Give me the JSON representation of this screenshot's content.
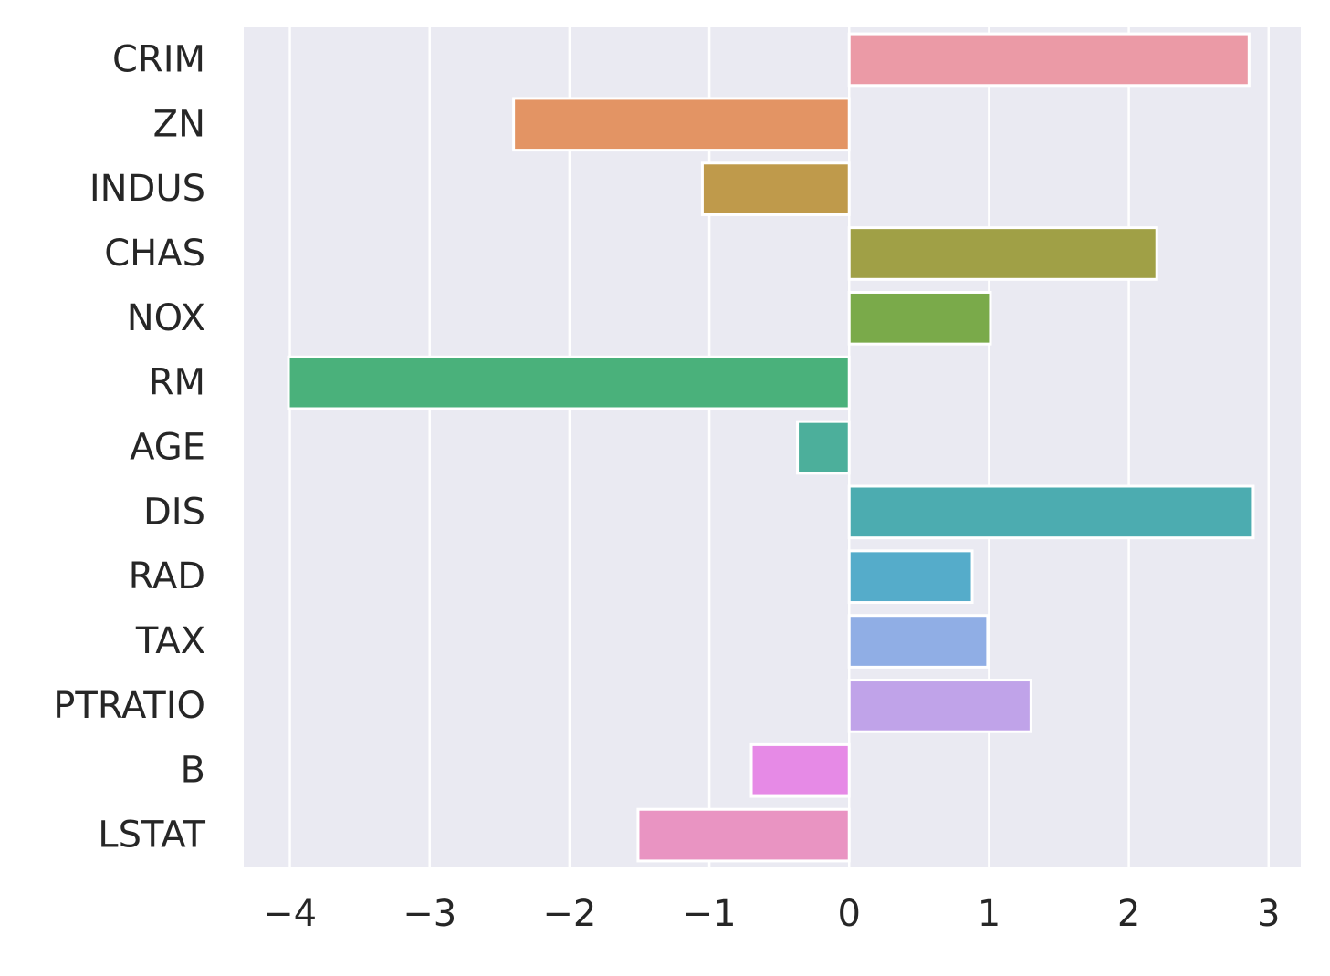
{
  "chart_data": {
    "type": "bar",
    "orientation": "horizontal",
    "categories": [
      "CRIM",
      "ZN",
      "INDUS",
      "CHAS",
      "NOX",
      "RM",
      "AGE",
      "DIS",
      "RAD",
      "TAX",
      "PTRATIO",
      "B",
      "LSTAT"
    ],
    "values": [
      2.86,
      -2.4,
      -1.05,
      2.2,
      1.01,
      -4.01,
      -0.37,
      2.89,
      0.88,
      0.99,
      1.3,
      -0.7,
      -1.51
    ],
    "colors": [
      "#eb9aa6",
      "#e39464",
      "#bf9a4b",
      "#a0a046",
      "#7aaa4a",
      "#4ab17b",
      "#4caf9b",
      "#4cacb0",
      "#55acca",
      "#90aee5",
      "#c0a3e9",
      "#e68ae6",
      "#e994c2"
    ],
    "xlim": [
      -4.33,
      3.23
    ],
    "xticks": [
      -4,
      -3,
      -2,
      -1,
      0,
      1,
      2,
      3
    ],
    "xtick_labels": [
      "−4",
      "−3",
      "−2",
      "−1",
      "0",
      "1",
      "2",
      "3"
    ],
    "title": "",
    "xlabel": "",
    "ylabel": "",
    "grid": true,
    "background": "#eaeaf2",
    "grid_color": "#ffffff"
  }
}
